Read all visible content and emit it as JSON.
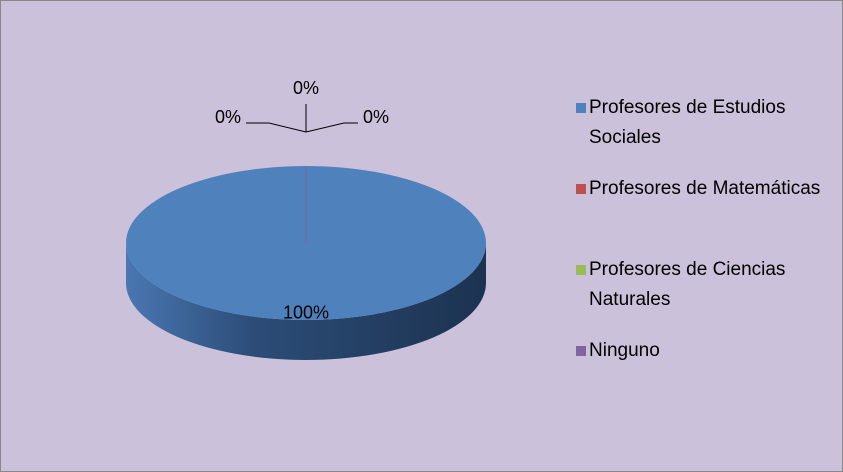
{
  "chart_data": {
    "type": "pie",
    "categories": [
      "Profesores de Estudios Sociales",
      "Profesores de Matemáticas",
      "Profesores de Ciencias Naturales",
      "Ninguno"
    ],
    "values": [
      100,
      0,
      0,
      0
    ],
    "value_labels": [
      "100%",
      "0%",
      "0%",
      "0%"
    ],
    "colors": [
      "#4f81bd",
      "#c0504d",
      "#9bbb59",
      "#8064a2"
    ],
    "legend": "right"
  }
}
